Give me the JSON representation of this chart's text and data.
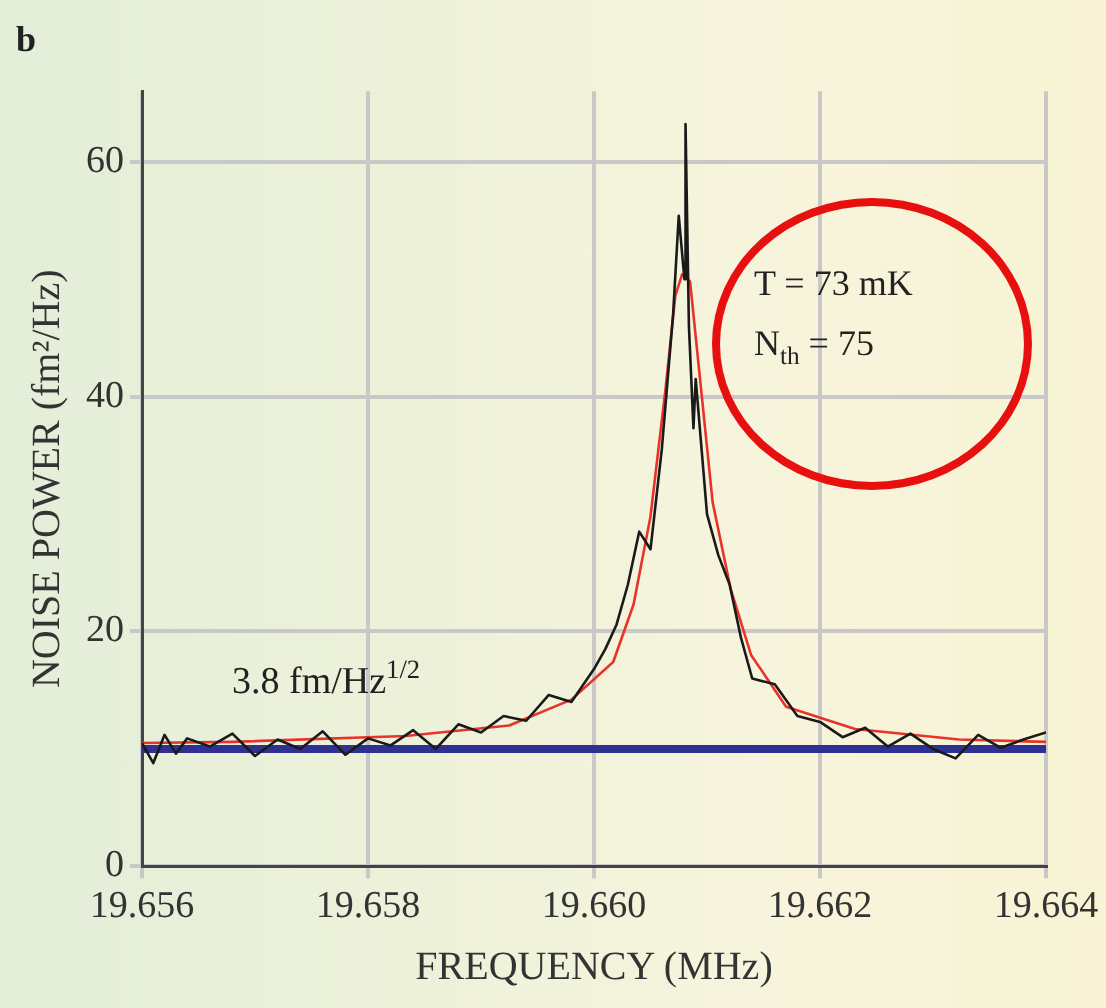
{
  "chart_data": {
    "type": "line",
    "title": "b",
    "xlabel": "FREQUENCY (MHz)",
    "ylabel": "NOISE POWER (fm²/Hz)",
    "xlim": [
      19.656,
      19.664
    ],
    "xticks": [
      19.656,
      19.658,
      {
        "value": 19.66,
        "label": "19.660"
      },
      19.662,
      19.664
    ],
    "ylim": [
      0,
      66
    ],
    "yticks": [
      0,
      20,
      40,
      60
    ],
    "grid": true,
    "legend": false,
    "marker": "none",
    "series": [
      {
        "color": "#1a1a1a",
        "x": [
          19.656,
          19.6561,
          19.6562,
          19.6563,
          19.6564,
          19.6566,
          19.6568,
          19.657,
          19.6572,
          19.6574,
          19.6576,
          19.6578,
          19.658,
          19.6582,
          19.6584,
          19.6586,
          19.6588,
          19.659,
          19.6592,
          19.6594,
          19.6596,
          19.6598,
          19.66,
          19.6601,
          19.6602,
          19.6603,
          19.6604,
          19.6605,
          19.6606,
          19.6607,
          19.66075,
          19.6608,
          19.66081,
          19.66084,
          19.66088,
          19.6609,
          19.661,
          19.6611,
          19.6612,
          19.6613,
          19.6614,
          19.6616,
          19.6618,
          19.662,
          19.6622,
          19.6624,
          19.6626,
          19.6628,
          19.663,
          19.6632,
          19.6634,
          19.6636,
          19.6638,
          19.664
        ],
        "values": [
          10.5,
          8.8,
          11.2,
          9.6,
          10.9,
          10.2,
          11.3,
          9.4,
          10.8,
          10.0,
          11.5,
          9.5,
          10.9,
          10.3,
          11.6,
          10.0,
          12.1,
          11.4,
          12.8,
          12.4,
          14.6,
          14.0,
          16.8,
          18.5,
          20.6,
          24.0,
          28.5,
          27.0,
          35.5,
          47.0,
          55.4,
          50.0,
          63.2,
          46.0,
          37.3,
          41.5,
          30.0,
          26.5,
          24.0,
          19.5,
          16.0,
          15.5,
          12.8,
          12.3,
          11.0,
          11.8,
          10.2,
          11.3,
          10.0,
          9.2,
          11.2,
          10.1,
          10.8,
          11.4
        ]
      },
      {
        "color": "#e8332a",
        "x": [
          19.656,
          19.6568,
          19.65833,
          19.65925,
          19.6598,
          19.66017,
          19.66035,
          19.6605,
          19.66063,
          19.66072,
          19.66078,
          19.66085,
          19.66093,
          19.66105,
          19.66121,
          19.66139,
          19.6617,
          19.66231,
          19.66323,
          19.664
        ],
        "values": [
          10.5,
          10.6,
          11.1,
          12.0,
          14.2,
          17.4,
          22.3,
          29.8,
          40.4,
          48.6,
          50.4,
          49.8,
          42.3,
          31.0,
          23.6,
          18.0,
          13.6,
          11.7,
          10.8,
          10.6
        ]
      }
    ],
    "ref_lines": [
      {
        "axis": "y",
        "value": 10,
        "color": "#2e3192",
        "label": "3.8 fm/Hz$^{1/2}$"
      }
    ],
    "annotations": [
      "T = 73 mK",
      "N$_{th}$ = 75"
    ]
  }
}
